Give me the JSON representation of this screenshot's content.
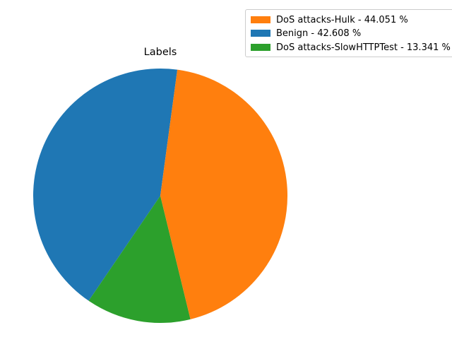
{
  "chart_data": {
    "type": "pie",
    "title": "Labels",
    "categories": [
      "Benign",
      "DoS attacks-SlowHTTPTest",
      "DoS attacks-Hulk"
    ],
    "values": [
      42.608,
      13.341,
      44.051
    ],
    "start_angle_deg": 82.3,
    "direction": "counterclockwise",
    "colors": [
      "#1f77b4",
      "#2ca02c",
      "#ff7f0e"
    ],
    "legend": {
      "placement": "top-right",
      "entries": [
        {
          "label": "DoS attacks-Hulk - 44.051 %",
          "color": "#ff7f0e"
        },
        {
          "label": "Benign - 42.608 %",
          "color": "#1f77b4"
        },
        {
          "label": "DoS attacks-SlowHTTPTest - 13.341 %",
          "color": "#2ca02c"
        }
      ]
    }
  }
}
